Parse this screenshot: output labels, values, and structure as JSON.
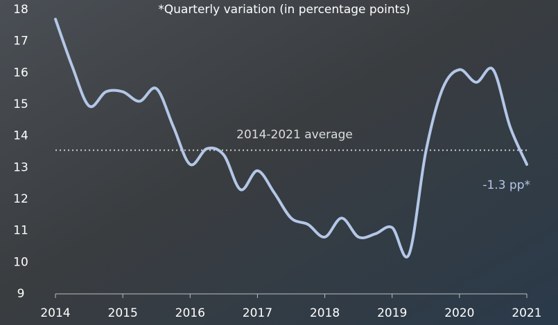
{
  "chart_data": {
    "type": "line",
    "note": "*Quarterly variation (in percentage points)",
    "x": [
      2014,
      2014.25,
      2014.5,
      2014.75,
      2015,
      2015.25,
      2015.5,
      2015.75,
      2016,
      2016.25,
      2016.5,
      2016.75,
      2017,
      2017.25,
      2017.5,
      2017.75,
      2018,
      2018.25,
      2018.5,
      2018.75,
      2019,
      2019.25,
      2019.5,
      2019.75,
      2020,
      2020.25,
      2020.5,
      2020.75,
      2021
    ],
    "series": [
      {
        "color": "#b4c7e7",
        "values": [
          17.7,
          16.2,
          14.95,
          15.4,
          15.4,
          15.1,
          15.5,
          14.3,
          13.1,
          13.6,
          13.4,
          12.3,
          12.9,
          12.2,
          11.4,
          11.2,
          10.8,
          11.4,
          10.8,
          10.9,
          11.1,
          10.25,
          13.5,
          15.5,
          16.1,
          15.7,
          16.1,
          14.3,
          13.1
        ]
      }
    ],
    "average": {
      "label": "2014-2021 average",
      "value": 13.55
    },
    "end_label": "-1.3 pp*",
    "xlim": [
      2014,
      2021
    ],
    "xticks": [
      2014,
      2015,
      2016,
      2017,
      2018,
      2019,
      2020,
      2021
    ],
    "ylim": [
      9,
      18
    ],
    "yticks": [
      9,
      10,
      11,
      12,
      13,
      14,
      15,
      16,
      17,
      18
    ]
  }
}
